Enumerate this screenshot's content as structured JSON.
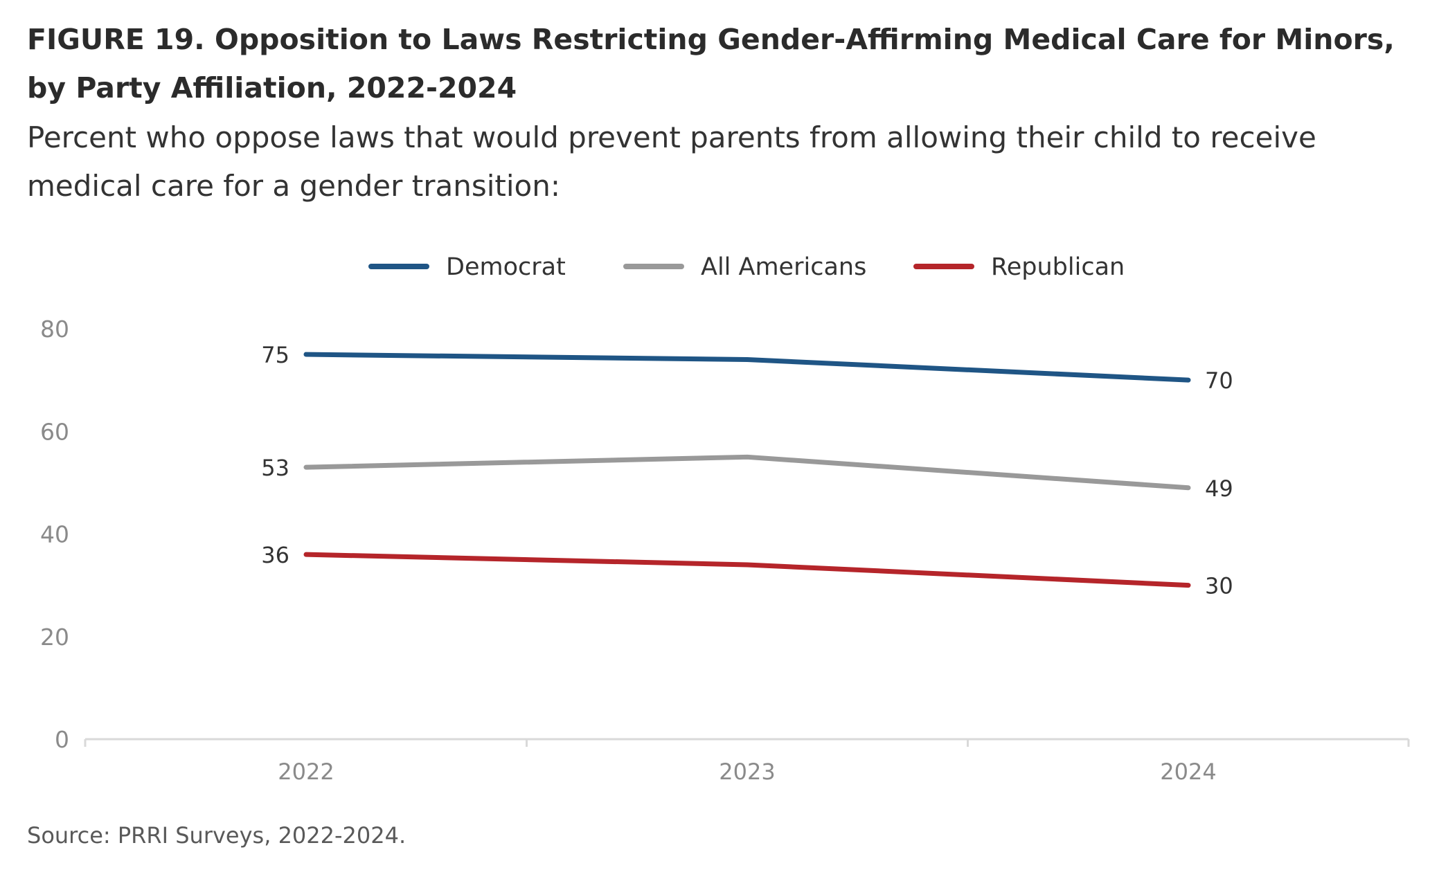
{
  "header": {
    "title": "FIGURE 19. Opposition to Laws Restricting Gender-Affirming Medical Care for Minors, by Party Affiliation, 2022-2024",
    "subtitle": "Percent who oppose laws that would prevent parents from allowing their child to receive medical care for a gender transition:"
  },
  "footer": {
    "source": "Source: PRRI Surveys, 2022-2024."
  },
  "chart_data": {
    "type": "line",
    "x": [
      "2022",
      "2023",
      "2024"
    ],
    "ylim": [
      0,
      80
    ],
    "yticks": [
      0,
      20,
      40,
      60,
      80
    ],
    "grid": false,
    "legend_position": "top-center",
    "series": [
      {
        "name": "Democrat",
        "color": "#1f5585",
        "values": [
          75,
          74,
          70
        ],
        "labels": [
          "75",
          "",
          "70"
        ]
      },
      {
        "name": "All Americans",
        "color": "#999999",
        "values": [
          53,
          55,
          49
        ],
        "labels": [
          "53",
          "",
          "49"
        ]
      },
      {
        "name": "Republican",
        "color": "#b5252a",
        "values": [
          36,
          34,
          30
        ],
        "labels": [
          "36",
          "",
          "30"
        ]
      }
    ]
  }
}
